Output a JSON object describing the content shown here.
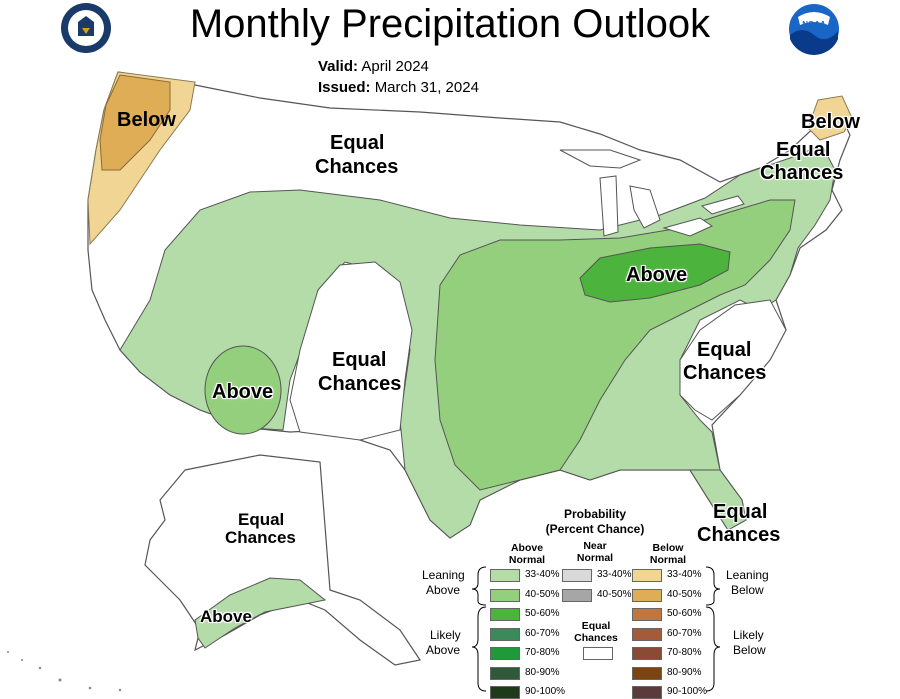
{
  "header": {
    "title": "Monthly Precipitation Outlook",
    "valid_label": "Valid:",
    "valid_value": "April 2024",
    "issued_label": "Issued:",
    "issued_value": "March 31, 2024"
  },
  "logos": {
    "left": "doc-seal-icon",
    "right": "noaa-logo-icon",
    "right_text": "NOAA"
  },
  "map_labels": {
    "nw_below": "Below",
    "north_equal_1": "Equal",
    "north_equal_2": "Chances",
    "ne_below": "Below",
    "ne_equal_1": "Equal",
    "ne_equal_2": "Chances",
    "ohio_above": "Above",
    "sw_above": "Above",
    "plains_equal_1": "Equal",
    "plains_equal_2": "Chances",
    "se_equal_1": "Equal",
    "se_equal_2": "Chances",
    "fl_equal_1": "Equal",
    "fl_equal_2": "Chances",
    "ak_equal_1": "Equal",
    "ak_equal_2": "Chances",
    "ak_above": "Above"
  },
  "legend": {
    "title_1": "Probability",
    "title_2": "(Percent Chance)",
    "above_head_1": "Above",
    "above_head_2": "Normal",
    "near_head_1": "Near",
    "near_head_2": "Normal",
    "below_head_1": "Below",
    "below_head_2": "Normal",
    "leaning_above_1": "Leaning",
    "leaning_above_2": "Above",
    "likely_above_1": "Likely",
    "likely_above_2": "Above",
    "leaning_below_1": "Leaning",
    "leaning_below_2": "Below",
    "likely_below_1": "Likely",
    "likely_below_2": "Below",
    "equal_1": "Equal",
    "equal_2": "Chances",
    "above_ranges": [
      "33-40%",
      "40-50%",
      "50-60%",
      "60-70%",
      "70-80%",
      "80-90%",
      "90-100%"
    ],
    "near_ranges": [
      "33-40%",
      "40-50%"
    ],
    "below_ranges": [
      "33-40%",
      "40-50%",
      "50-60%",
      "60-70%",
      "70-80%",
      "80-90%",
      "90-100%"
    ],
    "above_colors": [
      "#b3dca8",
      "#94cf7e",
      "#4cb33d",
      "#3a8a5a",
      "#1f9a3a",
      "#2f5a3a",
      "#1e3a1a"
    ],
    "near_colors": [
      "#d9d9d9",
      "#a6a6a6"
    ],
    "below_colors": [
      "#f0d595",
      "#e0ad57",
      "#c0773f",
      "#a55a3a",
      "#8a4a34",
      "#7a4510",
      "#5a3a3a"
    ]
  }
}
